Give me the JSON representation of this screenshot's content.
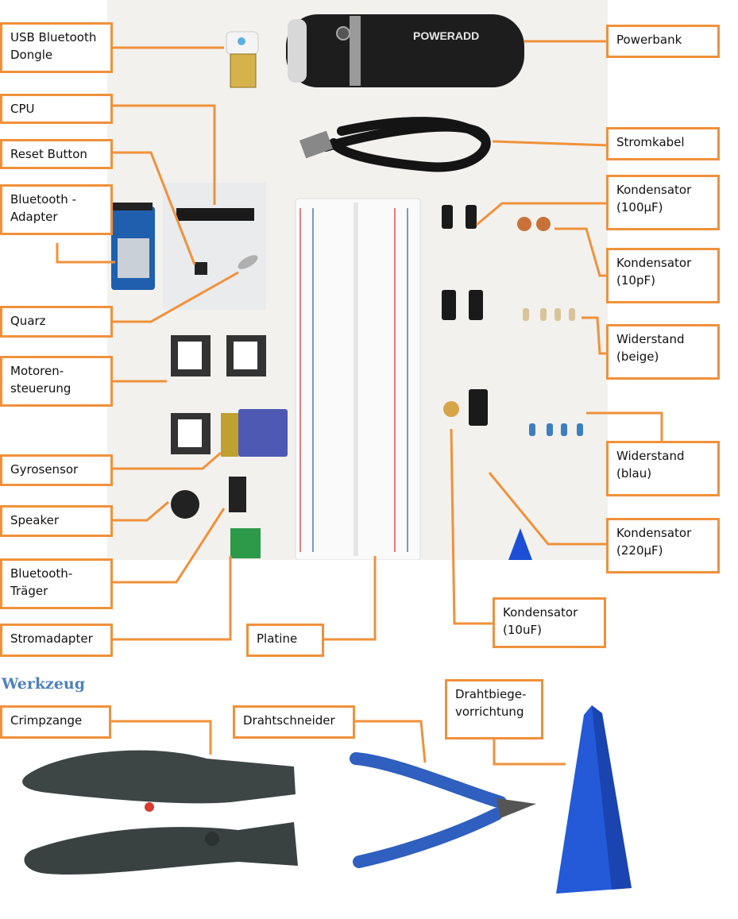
{
  "heading": "Werkzeug",
  "colors": {
    "label_border": "#f0913a",
    "heading": "#4f81bd",
    "photo_bg": "#f2f1ee"
  },
  "powerbank_brand": "POWERADD",
  "labels": {
    "usb_dongle": "USB Bluetooth\nDongle",
    "cpu": "CPU",
    "reset_button": "Reset Button",
    "bluetooth_adapter": "Bluetooth -\nAdapter",
    "quarz": "Quarz",
    "motor": "Motoren-\nsteuerung",
    "gyro": "Gyrosensor",
    "speaker": "Speaker",
    "bt_traeger": "Bluetooth-\nTräger",
    "stromadapter": "Stromadapter",
    "platine": "Platine",
    "powerbank": "Powerbank",
    "stromkabel": "Stromkabel",
    "kond100": "Kondensator\n(100µF)",
    "kond10p": "Kondensator\n(10pF)",
    "wid_beige": "Widerstand\n(beige)",
    "wid_blau": "Widerstand\n(blau)",
    "kond220": "Kondensator\n(220µF)",
    "kond10u": "Kondensator\n(10uF)",
    "crimpzange": "Crimpzange",
    "drahtschneider": "Drahtschneider",
    "drahtbiege": "Drahtbiege-\nvorrichtung"
  }
}
